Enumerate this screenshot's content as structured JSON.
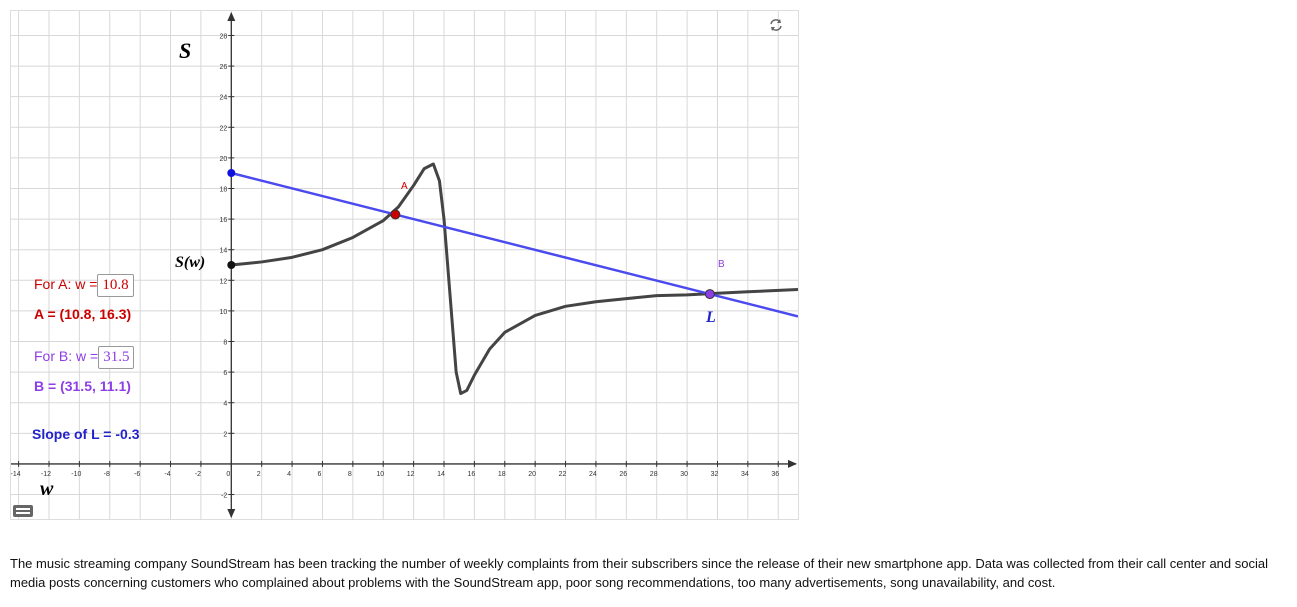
{
  "graph": {
    "xlim": [
      -14.5,
      37.3
    ],
    "ylim": [
      -3.6,
      29.6
    ],
    "xticks": [
      -14,
      -12,
      -10,
      -8,
      -6,
      -4,
      -2,
      0,
      2,
      4,
      6,
      8,
      10,
      12,
      14,
      16,
      18,
      20,
      22,
      24,
      26,
      28,
      30,
      32,
      34,
      36
    ],
    "yticks": [
      -2,
      2,
      4,
      6,
      8,
      10,
      12,
      14,
      16,
      18,
      20,
      22,
      24,
      26,
      28
    ],
    "curve": {
      "name": "S(w)",
      "x": [
        0,
        2,
        4,
        6,
        8,
        10,
        11,
        12,
        12.7,
        13.3,
        13.7,
        14,
        14.4,
        14.8,
        15.1,
        15.5,
        16,
        17,
        18,
        20,
        22,
        24,
        26,
        28,
        30,
        32,
        34,
        37.3
      ],
      "y": [
        13,
        13.2,
        13.5,
        14,
        14.8,
        15.9,
        16.8,
        18.2,
        19.3,
        19.6,
        18.5,
        16,
        11,
        6,
        4.6,
        4.8,
        5.8,
        7.5,
        8.6,
        9.7,
        10.3,
        10.6,
        10.8,
        11,
        11.05,
        11.15,
        11.25,
        11.4
      ]
    },
    "points": [
      {
        "name": "A",
        "x": 10.8,
        "y": 16.3,
        "color": "#cc0000"
      },
      {
        "name": "B",
        "x": 31.5,
        "y": 11.1,
        "color": "#8e3ee6"
      }
    ],
    "line_name": "L",
    "y_axis_label": "S",
    "x_axis_label": "w"
  },
  "panel": {
    "a_prompt": "For A: w =",
    "a_input": "10.8",
    "a_result": "A = (10.8, 16.3)",
    "b_prompt": "For B: w =",
    "b_input": "31.5",
    "b_result": "B = (31.5, 11.1)",
    "slope": "Slope of L =  -0.3"
  },
  "description": "The music streaming company SoundStream has been tracking the number of weekly complaints from their subscribers since the release of their new smartphone app. Data was collected from their call center and social media posts concerning customers who complained about problems with the SoundStream app, poor song recommendations, too many advertisements, song unavailability, and cost."
}
